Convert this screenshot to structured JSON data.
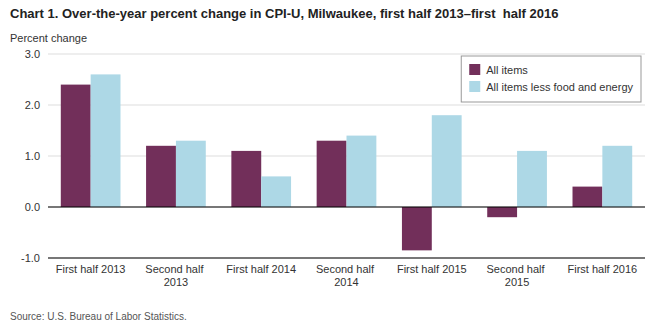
{
  "chart_data": {
    "type": "bar",
    "title": "Chart 1. Over-the-year percent change in CPI-U, Milwaukee, first half 2013–first  half 2016",
    "y_label": "Percent change",
    "source": "Source: U.S. Bureau of Labor Statistics.",
    "categories": [
      "First half 2013",
      "Second half 2013",
      "First half 2014",
      "Second half 2014",
      "First half 2015",
      "Second half 2015",
      "First half 2016"
    ],
    "series": [
      {
        "name": "All items",
        "color": "#722F5A",
        "values": [
          2.4,
          1.2,
          1.1,
          1.3,
          -0.85,
          -0.2,
          0.4
        ]
      },
      {
        "name": "All items less food and energy",
        "color": "#ADD8E6",
        "values": [
          2.6,
          1.3,
          0.6,
          1.4,
          1.8,
          1.1,
          1.2
        ]
      }
    ],
    "ylim": [
      -1.0,
      3.0
    ],
    "yticks": [
      {
        "value": -1.0,
        "label": "-1.0"
      },
      {
        "value": 0.0,
        "label": "0.0"
      },
      {
        "value": 1.0,
        "label": "1.0"
      },
      {
        "value": 2.0,
        "label": "2.0"
      },
      {
        "value": 3.0,
        "label": "3.0"
      }
    ],
    "grid": true,
    "legend": "upper right"
  }
}
